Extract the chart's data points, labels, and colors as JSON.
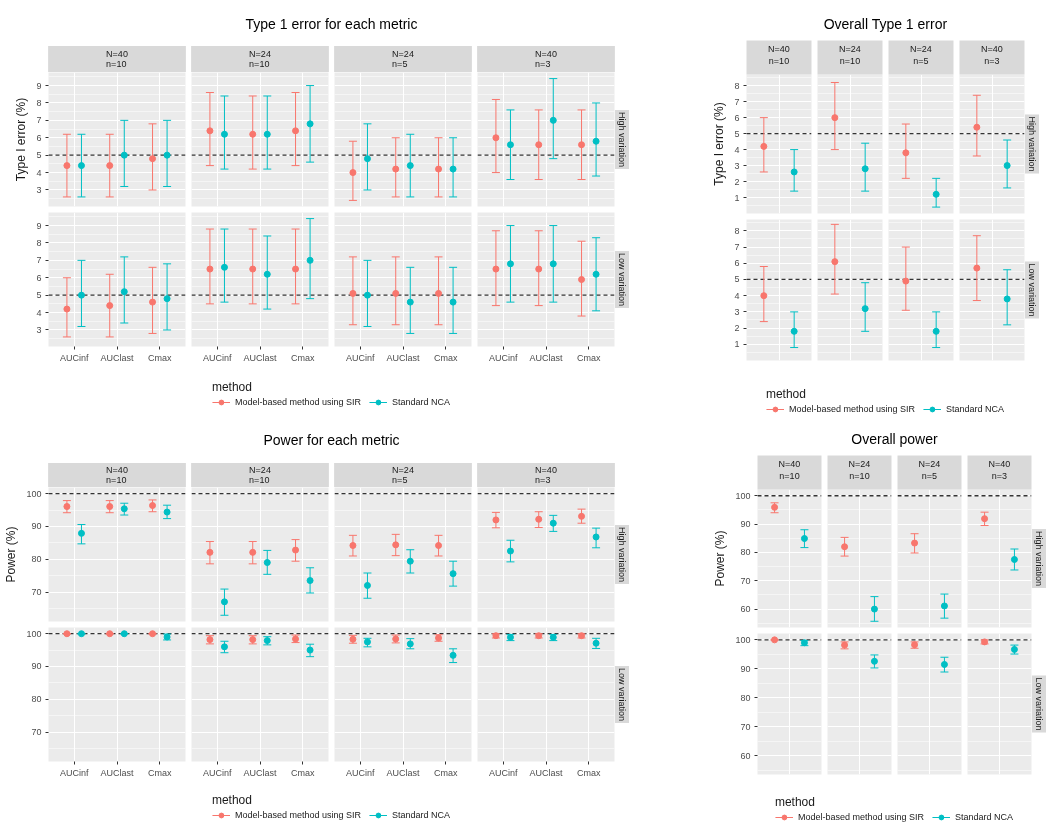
{
  "chart_data": [
    {
      "type": "other",
      "title": "Type 1 error for each metric"
    },
    {
      "type": "scatter",
      "title": "N=40\nn=10",
      "ylabel": "Type I error (%)",
      "tick_labels": "y",
      "categories": [
        "AUCinf",
        "AUClast",
        "Cmax"
      ],
      "ylim": [
        2.05,
        9.75
      ],
      "yticks": [
        3,
        4,
        5,
        6,
        7,
        8,
        9
      ],
      "grid": true,
      "marker": "circle",
      "ref_lines": [
        {
          "axis": "y",
          "value": 5,
          "color": "#333333",
          "line_style": "dashed"
        }
      ],
      "series": [
        {
          "color": "#f8766d",
          "values": [
            4.4,
            4.4,
            4.8
          ],
          "errors": [
            [
              2.6,
              6.2
            ],
            [
              2.6,
              6.2
            ],
            [
              3.0,
              6.8
            ]
          ]
        },
        {
          "color": "#00bfc4",
          "values": [
            4.4,
            5.0,
            5.0
          ],
          "errors": [
            [
              2.6,
              6.2
            ],
            [
              3.2,
              7.0
            ],
            [
              3.2,
              7.0
            ]
          ]
        }
      ]
    },
    {
      "type": "scatter",
      "title": "N=24\nn=10",
      "tick_labels": false,
      "categories": [
        "AUCinf",
        "AUClast",
        "Cmax"
      ],
      "ylim": [
        2.05,
        9.75
      ],
      "yticks": [
        3,
        4,
        5,
        6,
        7,
        8,
        9
      ],
      "grid": true,
      "marker": "circle",
      "ref_lines": [
        {
          "axis": "y",
          "value": 5,
          "color": "#333333",
          "line_style": "dashed"
        }
      ],
      "series": [
        {
          "color": "#f8766d",
          "values": [
            6.4,
            6.2,
            6.4
          ],
          "errors": [
            [
              4.4,
              8.6
            ],
            [
              4.2,
              8.4
            ],
            [
              4.4,
              8.6
            ]
          ]
        },
        {
          "color": "#00bfc4",
          "values": [
            6.2,
            6.2,
            6.8
          ],
          "errors": [
            [
              4.2,
              8.4
            ],
            [
              4.2,
              8.4
            ],
            [
              4.6,
              9.0
            ]
          ]
        }
      ]
    },
    {
      "type": "scatter",
      "title": "N=24\nn=5",
      "tick_labels": false,
      "categories": [
        "AUCinf",
        "AUClast",
        "Cmax"
      ],
      "ylim": [
        2.05,
        9.75
      ],
      "yticks": [
        3,
        4,
        5,
        6,
        7,
        8,
        9
      ],
      "grid": true,
      "marker": "circle",
      "ref_lines": [
        {
          "axis": "y",
          "value": 5,
          "color": "#333333",
          "line_style": "dashed"
        }
      ],
      "series": [
        {
          "color": "#f8766d",
          "values": [
            4.0,
            4.2,
            4.2
          ],
          "errors": [
            [
              2.4,
              5.8
            ],
            [
              2.6,
              6.0
            ],
            [
              2.6,
              6.0
            ]
          ]
        },
        {
          "color": "#00bfc4",
          "values": [
            4.8,
            4.4,
            4.2
          ],
          "errors": [
            [
              3.0,
              6.8
            ],
            [
              2.6,
              6.2
            ],
            [
              2.6,
              6.0
            ]
          ]
        }
      ]
    },
    {
      "type": "scatter",
      "title": "N=40\nn=3",
      "y2label": "High variation",
      "tick_labels": false,
      "categories": [
        "AUCinf",
        "AUClast",
        "Cmax"
      ],
      "ylim": [
        2.05,
        9.75
      ],
      "yticks": [
        3,
        4,
        5,
        6,
        7,
        8,
        9
      ],
      "grid": true,
      "marker": "circle",
      "ref_lines": [
        {
          "axis": "y",
          "value": 5,
          "color": "#333333",
          "line_style": "dashed"
        }
      ],
      "series": [
        {
          "color": "#f8766d",
          "values": [
            6.0,
            5.6,
            5.6
          ],
          "errors": [
            [
              4.0,
              8.2
            ],
            [
              3.6,
              7.6
            ],
            [
              3.6,
              7.6
            ]
          ]
        },
        {
          "color": "#00bfc4",
          "values": [
            5.6,
            7.0,
            5.8
          ],
          "errors": [
            [
              3.6,
              7.6
            ],
            [
              4.8,
              9.4
            ],
            [
              3.8,
              8.0
            ]
          ]
        }
      ]
    },
    {
      "type": "scatter",
      "categories": [
        "AUCinf",
        "AUClast",
        "Cmax"
      ],
      "ylim": [
        2.05,
        9.75
      ],
      "yticks": [
        3,
        4,
        5,
        6,
        7,
        8,
        9
      ],
      "grid": true,
      "marker": "circle",
      "ref_lines": [
        {
          "axis": "y",
          "value": 5,
          "color": "#333333",
          "line_style": "dashed"
        }
      ],
      "series": [
        {
          "color": "#f8766d",
          "values": [
            4.2,
            4.4,
            4.6
          ],
          "errors": [
            [
              2.6,
              6.0
            ],
            [
              2.6,
              6.2
            ],
            [
              2.8,
              6.6
            ]
          ]
        },
        {
          "color": "#00bfc4",
          "values": [
            5.0,
            5.2,
            4.8
          ],
          "errors": [
            [
              3.2,
              7.0
            ],
            [
              3.4,
              7.2
            ],
            [
              3.0,
              6.8
            ]
          ]
        }
      ]
    },
    {
      "type": "scatter",
      "tick_labels": "x",
      "categories": [
        "AUCinf",
        "AUClast",
        "Cmax"
      ],
      "ylim": [
        2.05,
        9.75
      ],
      "yticks": [
        3,
        4,
        5,
        6,
        7,
        8,
        9
      ],
      "grid": true,
      "marker": "circle",
      "ref_lines": [
        {
          "axis": "y",
          "value": 5,
          "color": "#333333",
          "line_style": "dashed"
        }
      ],
      "series": [
        {
          "color": "#f8766d",
          "values": [
            6.5,
            6.5,
            6.5
          ],
          "errors": [
            [
              4.5,
              8.8
            ],
            [
              4.5,
              8.8
            ],
            [
              4.5,
              8.8
            ]
          ]
        },
        {
          "color": "#00bfc4",
          "values": [
            6.6,
            6.2,
            7.0
          ],
          "errors": [
            [
              4.6,
              8.8
            ],
            [
              4.2,
              8.4
            ],
            [
              4.8,
              9.4
            ]
          ]
        }
      ]
    },
    {
      "type": "scatter",
      "tick_labels": "x",
      "categories": [
        "AUCinf",
        "AUClast",
        "Cmax"
      ],
      "ylim": [
        2.05,
        9.75
      ],
      "yticks": [
        3,
        4,
        5,
        6,
        7,
        8,
        9
      ],
      "grid": true,
      "marker": "circle",
      "ref_lines": [
        {
          "axis": "y",
          "value": 5,
          "color": "#333333",
          "line_style": "dashed"
        }
      ],
      "series": [
        {
          "color": "#f8766d",
          "values": [
            5.1,
            5.1,
            5.1
          ],
          "errors": [
            [
              3.3,
              7.2
            ],
            [
              3.3,
              7.2
            ],
            [
              3.3,
              7.2
            ]
          ]
        },
        {
          "color": "#00bfc4",
          "values": [
            5.0,
            4.6,
            4.6
          ],
          "errors": [
            [
              3.2,
              7.0
            ],
            [
              2.8,
              6.6
            ],
            [
              2.8,
              6.6
            ]
          ]
        }
      ]
    },
    {
      "type": "scatter",
      "y2label": "Low variation",
      "tick_labels": "x",
      "categories": [
        "AUCinf",
        "AUClast",
        "Cmax"
      ],
      "ylim": [
        2.05,
        9.75
      ],
      "yticks": [
        3,
        4,
        5,
        6,
        7,
        8,
        9
      ],
      "grid": true,
      "marker": "circle",
      "ref_lines": [
        {
          "axis": "y",
          "value": 5,
          "color": "#333333",
          "line_style": "dashed"
        }
      ],
      "series": [
        {
          "color": "#f8766d",
          "values": [
            6.5,
            6.5,
            5.9
          ],
          "errors": [
            [
              4.4,
              8.7
            ],
            [
              4.4,
              8.7
            ],
            [
              3.8,
              8.1
            ]
          ]
        },
        {
          "color": "#00bfc4",
          "values": [
            6.8,
            6.8,
            6.2
          ],
          "errors": [
            [
              4.6,
              9.0
            ],
            [
              4.6,
              9.0
            ],
            [
              4.1,
              8.3
            ]
          ]
        }
      ]
    },
    {
      "type": "other",
      "legend": "bottom",
      "legend_title": "method",
      "series": [
        {
          "name": "Model-based method using SIR",
          "color": "#f8766d"
        },
        {
          "name": "Standard NCA",
          "color": "#00bfc4"
        }
      ]
    },
    {
      "type": "other",
      "title": "Overall Type 1 error"
    },
    {
      "type": "scatter",
      "ylabel": "Type I error (%)",
      "categories": [
        "N=40\nn=10"
      ],
      "ylim": [
        0,
        8.7
      ],
      "yticks": [
        1,
        2,
        3,
        4,
        5,
        6,
        7,
        8
      ],
      "grid": true,
      "marker": "circle",
      "ref_lines": [
        {
          "axis": "y",
          "value": 5,
          "color": "#333333",
          "line_style": "dashed"
        }
      ],
      "series": [
        {
          "color": "#f8766d",
          "values": [
            4.2
          ],
          "errors": [
            [
              2.6,
              6.0
            ]
          ]
        },
        {
          "color": "#00bfc4",
          "values": [
            2.6
          ],
          "errors": [
            [
              1.4,
              4.0
            ]
          ]
        }
      ]
    },
    {
      "type": "scatter",
      "tick_labels": "x",
      "categories": [
        "N=24\nn=10"
      ],
      "ylim": [
        0,
        8.7
      ],
      "yticks": [
        1,
        2,
        3,
        4,
        5,
        6,
        7,
        8
      ],
      "grid": true,
      "marker": "circle",
      "ref_lines": [
        {
          "axis": "y",
          "value": 5,
          "color": "#333333",
          "line_style": "dashed"
        }
      ],
      "series": [
        {
          "color": "#f8766d",
          "values": [
            6.0
          ],
          "errors": [
            [
              4.0,
              8.2
            ]
          ]
        },
        {
          "color": "#00bfc4",
          "values": [
            2.8
          ],
          "errors": [
            [
              1.4,
              4.4
            ]
          ]
        }
      ]
    },
    {
      "type": "scatter",
      "tick_labels": "x",
      "categories": [
        "N=24\nn=5"
      ],
      "ylim": [
        0,
        8.7
      ],
      "yticks": [
        1,
        2,
        3,
        4,
        5,
        6,
        7,
        8
      ],
      "grid": true,
      "marker": "circle",
      "ref_lines": [
        {
          "axis": "y",
          "value": 5,
          "color": "#333333",
          "line_style": "dashed"
        }
      ],
      "series": [
        {
          "color": "#f8766d",
          "values": [
            3.8
          ],
          "errors": [
            [
              2.2,
              5.6
            ]
          ]
        },
        {
          "color": "#00bfc4",
          "values": [
            1.2
          ],
          "errors": [
            [
              0.4,
              2.2
            ]
          ]
        }
      ]
    },
    {
      "type": "scatter",
      "y2label": "High variation",
      "tick_labels": "x",
      "categories": [
        "N=40\nn=3"
      ],
      "ylim": [
        0,
        8.7
      ],
      "yticks": [
        1,
        2,
        3,
        4,
        5,
        6,
        7,
        8
      ],
      "grid": true,
      "marker": "circle",
      "ref_lines": [
        {
          "axis": "y",
          "value": 5,
          "color": "#333333",
          "line_style": "dashed"
        }
      ],
      "series": [
        {
          "color": "#f8766d",
          "values": [
            5.4
          ],
          "errors": [
            [
              3.6,
              7.4
            ]
          ]
        },
        {
          "color": "#00bfc4",
          "values": [
            3.0
          ],
          "errors": [
            [
              1.6,
              4.6
            ]
          ]
        }
      ]
    },
    {
      "type": "scatter",
      "tick_labels": "y",
      "categories": [
        "N=40\nn=10"
      ],
      "ylim": [
        0,
        8.7
      ],
      "yticks": [
        1,
        2,
        3,
        4,
        5,
        6,
        7,
        8
      ],
      "grid": true,
      "marker": "circle",
      "ref_lines": [
        {
          "axis": "y",
          "value": 5,
          "color": "#333333",
          "line_style": "dashed"
        }
      ],
      "series": [
        {
          "color": "#f8766d",
          "values": [
            4.0
          ],
          "errors": [
            [
              2.4,
              5.8
            ]
          ]
        },
        {
          "color": "#00bfc4",
          "values": [
            1.8
          ],
          "errors": [
            [
              0.8,
              3.0
            ]
          ]
        }
      ]
    },
    {
      "type": "scatter",
      "tick_labels": false,
      "categories": [
        "N=24\nn=10"
      ],
      "ylim": [
        0,
        8.7
      ],
      "yticks": [
        1,
        2,
        3,
        4,
        5,
        6,
        7,
        8
      ],
      "grid": true,
      "marker": "circle",
      "ref_lines": [
        {
          "axis": "y",
          "value": 5,
          "color": "#333333",
          "line_style": "dashed"
        }
      ],
      "series": [
        {
          "color": "#f8766d",
          "values": [
            6.1
          ],
          "errors": [
            [
              4.1,
              8.4
            ]
          ]
        },
        {
          "color": "#00bfc4",
          "values": [
            3.2
          ],
          "errors": [
            [
              1.8,
              4.8
            ]
          ]
        }
      ]
    },
    {
      "type": "scatter",
      "tick_labels": false,
      "categories": [
        "N=24\nn=5"
      ],
      "ylim": [
        0,
        8.7
      ],
      "yticks": [
        1,
        2,
        3,
        4,
        5,
        6,
        7,
        8
      ],
      "grid": true,
      "marker": "circle",
      "ref_lines": [
        {
          "axis": "y",
          "value": 5,
          "color": "#333333",
          "line_style": "dashed"
        }
      ],
      "series": [
        {
          "color": "#f8766d",
          "values": [
            4.9
          ],
          "errors": [
            [
              3.1,
              7.0
            ]
          ]
        },
        {
          "color": "#00bfc4",
          "values": [
            1.8
          ],
          "errors": [
            [
              0.8,
              3.0
            ]
          ]
        }
      ]
    },
    {
      "type": "scatter",
      "y2label": "Low variation",
      "tick_labels": false,
      "categories": [
        "N=40\nn=3"
      ],
      "ylim": [
        0,
        8.7
      ],
      "yticks": [
        1,
        2,
        3,
        4,
        5,
        6,
        7,
        8
      ],
      "grid": true,
      "marker": "circle",
      "ref_lines": [
        {
          "axis": "y",
          "value": 5,
          "color": "#333333",
          "line_style": "dashed"
        }
      ],
      "series": [
        {
          "color": "#f8766d",
          "values": [
            5.7
          ],
          "errors": [
            [
              3.7,
              7.7
            ]
          ]
        },
        {
          "color": "#00bfc4",
          "values": [
            3.8
          ],
          "errors": [
            [
              2.2,
              5.6
            ]
          ]
        }
      ]
    },
    {
      "type": "other",
      "legend": "bottom",
      "legend_title": "method",
      "series": [
        {
          "name": "Model-based method using SIR",
          "color": "#f8766d"
        },
        {
          "name": "Standard NCA",
          "color": "#00bfc4"
        }
      ]
    },
    {
      "type": "other",
      "title": "Power for each metric"
    },
    {
      "type": "scatter",
      "title": "N=40\nn=10",
      "ylabel": "Power (%)",
      "tick_labels": "y",
      "categories": [
        "AUCinf",
        "AUClast",
        "Cmax"
      ],
      "ylim": [
        61,
        101.9
      ],
      "yticks": [
        70,
        80,
        90,
        100
      ],
      "grid": true,
      "marker": "circle",
      "ref_lines": [
        {
          "axis": "y",
          "value": 100,
          "color": "#333333",
          "line_style": "dashed"
        }
      ],
      "series": [
        {
          "color": "#f8766d",
          "values": [
            96.1,
            96.1,
            96.4
          ],
          "errors": [
            [
              94.2,
              97.9
            ],
            [
              94.2,
              97.9
            ],
            [
              94.5,
              98.1
            ]
          ]
        },
        {
          "color": "#00bfc4",
          "values": [
            87.9,
            95.4,
            94.4
          ],
          "errors": [
            [
              84.7,
              90.6
            ],
            [
              93.5,
              97.1
            ],
            [
              92.4,
              96.5
            ]
          ]
        }
      ]
    },
    {
      "type": "scatter",
      "title": "N=24\nn=10",
      "tick_labels": false,
      "categories": [
        "AUCinf",
        "AUClast",
        "Cmax"
      ],
      "ylim": [
        61,
        101.9
      ],
      "yticks": [
        70,
        80,
        90,
        100
      ],
      "grid": true,
      "marker": "circle",
      "ref_lines": [
        {
          "axis": "y",
          "value": 100,
          "color": "#333333",
          "line_style": "dashed"
        }
      ],
      "series": [
        {
          "color": "#f8766d",
          "values": [
            82.1,
            82.1,
            82.8
          ],
          "errors": [
            [
              78.6,
              85.4
            ],
            [
              78.6,
              85.4
            ],
            [
              79.4,
              86.0
            ]
          ]
        },
        {
          "color": "#00bfc4",
          "values": [
            67.0,
            79.0,
            73.5
          ],
          "errors": [
            [
              62.9,
              70.9
            ],
            [
              75.4,
              82.7
            ],
            [
              69.7,
              77.4
            ]
          ]
        }
      ]
    },
    {
      "type": "scatter",
      "title": "N=24\nn=5",
      "tick_labels": false,
      "categories": [
        "AUCinf",
        "AUClast",
        "Cmax"
      ],
      "ylim": [
        61,
        101.9
      ],
      "yticks": [
        70,
        80,
        90,
        100
      ],
      "grid": true,
      "marker": "circle",
      "ref_lines": [
        {
          "axis": "y",
          "value": 100,
          "color": "#333333",
          "line_style": "dashed"
        }
      ],
      "series": [
        {
          "color": "#f8766d",
          "values": [
            84.2,
            84.4,
            84.2
          ],
          "errors": [
            [
              81.0,
              87.3
            ],
            [
              81.1,
              87.6
            ],
            [
              81.0,
              87.3
            ]
          ]
        },
        {
          "color": "#00bfc4",
          "values": [
            72.0,
            79.4,
            75.6
          ],
          "errors": [
            [
              68.1,
              75.8
            ],
            [
              75.8,
              82.9
            ],
            [
              71.8,
              79.4
            ]
          ]
        }
      ]
    },
    {
      "type": "scatter",
      "title": "N=40\nn=3",
      "y2label": "High variation",
      "tick_labels": false,
      "categories": [
        "AUCinf",
        "AUClast",
        "Cmax"
      ],
      "ylim": [
        61,
        101.9
      ],
      "yticks": [
        70,
        80,
        90,
        100
      ],
      "grid": true,
      "marker": "circle",
      "ref_lines": [
        {
          "axis": "y",
          "value": 100,
          "color": "#333333",
          "line_style": "dashed"
        }
      ],
      "series": [
        {
          "color": "#f8766d",
          "values": [
            92.0,
            92.2,
            93.1
          ],
          "errors": [
            [
              89.6,
              94.3
            ],
            [
              89.7,
              94.5
            ],
            [
              91.0,
              95.3
            ]
          ]
        },
        {
          "color": "#00bfc4",
          "values": [
            82.5,
            91.0,
            86.8
          ],
          "errors": [
            [
              79.2,
              85.8
            ],
            [
              88.5,
              93.4
            ],
            [
              83.5,
              89.5
            ]
          ]
        }
      ]
    },
    {
      "type": "scatter",
      "categories": [
        "AUCinf",
        "AUClast",
        "Cmax"
      ],
      "ylim": [
        61,
        101.9
      ],
      "yticks": [
        70,
        80,
        90,
        100
      ],
      "grid": true,
      "marker": "circle",
      "ref_lines": [
        {
          "axis": "y",
          "value": 100,
          "color": "#333333",
          "line_style": "dashed"
        }
      ],
      "series": [
        {
          "color": "#f8766d",
          "values": [
            100,
            100,
            100
          ],
          "errors": [
            [
              100,
              100
            ],
            [
              100,
              100
            ],
            [
              100,
              100
            ]
          ]
        },
        {
          "color": "#00bfc4",
          "values": [
            100,
            100,
            99.0
          ],
          "errors": [
            [
              100,
              100
            ],
            [
              100,
              100
            ],
            [
              98.1,
              99.9
            ]
          ]
        }
      ]
    },
    {
      "type": "scatter",
      "tick_labels": "x",
      "categories": [
        "AUCinf",
        "AUClast",
        "Cmax"
      ],
      "ylim": [
        61,
        101.9
      ],
      "yticks": [
        70,
        80,
        90,
        100
      ],
      "grid": true,
      "marker": "circle",
      "ref_lines": [
        {
          "axis": "y",
          "value": 100,
          "color": "#333333",
          "line_style": "dashed"
        }
      ],
      "series": [
        {
          "color": "#f8766d",
          "values": [
            98.2,
            98.2,
            98.4
          ],
          "errors": [
            [
              96.9,
              99.4
            ],
            [
              96.9,
              99.4
            ],
            [
              97.3,
              99.6
            ]
          ]
        },
        {
          "color": "#00bfc4",
          "values": [
            96.0,
            97.9,
            95.0
          ],
          "errors": [
            [
              94.2,
              97.7
            ],
            [
              96.6,
              99.1
            ],
            [
              93.0,
              96.8
            ]
          ]
        }
      ]
    },
    {
      "type": "scatter",
      "tick_labels": "x",
      "categories": [
        "AUCinf",
        "AUClast",
        "Cmax"
      ],
      "ylim": [
        61,
        101.9
      ],
      "yticks": [
        70,
        80,
        90,
        100
      ],
      "grid": true,
      "marker": "circle",
      "ref_lines": [
        {
          "axis": "y",
          "value": 100,
          "color": "#333333",
          "line_style": "dashed"
        }
      ],
      "series": [
        {
          "color": "#f8766d",
          "values": [
            98.3,
            98.4,
            98.7
          ],
          "errors": [
            [
              97.1,
              99.5
            ],
            [
              97.2,
              99.6
            ],
            [
              97.7,
              99.7
            ]
          ]
        },
        {
          "color": "#00bfc4",
          "values": [
            97.5,
            96.9,
            93.4
          ],
          "errors": [
            [
              96.0,
              98.6
            ],
            [
              95.4,
              98.5
            ],
            [
              91.2,
              95.4
            ]
          ]
        }
      ]
    },
    {
      "type": "scatter",
      "y2label": "Low variation",
      "tick_labels": "x",
      "categories": [
        "AUCinf",
        "AUClast",
        "Cmax"
      ],
      "ylim": [
        61,
        101.9
      ],
      "yticks": [
        70,
        80,
        90,
        100
      ],
      "grid": true,
      "marker": "circle",
      "ref_lines": [
        {
          "axis": "y",
          "value": 100,
          "color": "#333333",
          "line_style": "dashed"
        }
      ],
      "series": [
        {
          "color": "#f8766d",
          "values": [
            99.4,
            99.4,
            99.4
          ],
          "errors": [
            [
              98.7,
              100
            ],
            [
              98.7,
              100
            ],
            [
              98.7,
              100
            ]
          ]
        },
        {
          "color": "#00bfc4",
          "values": [
            98.9,
            98.9,
            97.1
          ],
          "errors": [
            [
              97.9,
              99.8
            ],
            [
              97.9,
              99.8
            ],
            [
              95.5,
              98.6
            ]
          ]
        }
      ]
    },
    {
      "type": "other",
      "legend": "bottom",
      "legend_title": "method",
      "series": [
        {
          "name": "Model-based method using SIR",
          "color": "#f8766d"
        },
        {
          "name": "Standard NCA",
          "color": "#00bfc4"
        }
      ]
    },
    {
      "type": "other",
      "title": "Overall power"
    },
    {
      "type": "scatter",
      "ylabel": "Power (%)",
      "categories": [
        "N=40\nn=10"
      ],
      "ylim": [
        53.5,
        102.2
      ],
      "yticks": [
        60,
        70,
        80,
        90,
        100
      ],
      "grid": true,
      "marker": "circle",
      "ref_lines": [
        {
          "axis": "y",
          "value": 100,
          "color": "#333333",
          "line_style": "dashed"
        }
      ],
      "series": [
        {
          "color": "#f8766d",
          "values": [
            95.9
          ],
          "errors": [
            [
              94.0,
              97.5
            ]
          ]
        },
        {
          "color": "#00bfc4",
          "values": [
            84.9
          ],
          "errors": [
            [
              81.7,
              88.0
            ]
          ]
        }
      ]
    },
    {
      "type": "scatter",
      "tick_labels": "x",
      "categories": [
        "N=24\nn=10"
      ],
      "ylim": [
        53.5,
        102.2
      ],
      "yticks": [
        60,
        70,
        80,
        90,
        100
      ],
      "grid": true,
      "marker": "circle",
      "ref_lines": [
        {
          "axis": "y",
          "value": 100,
          "color": "#333333",
          "line_style": "dashed"
        }
      ],
      "series": [
        {
          "color": "#f8766d",
          "values": [
            82.0
          ],
          "errors": [
            [
              78.7,
              85.3
            ]
          ]
        },
        {
          "color": "#00bfc4",
          "values": [
            60.0
          ],
          "errors": [
            [
              55.7,
              64.4
            ]
          ]
        }
      ]
    },
    {
      "type": "scatter",
      "tick_labels": "x",
      "categories": [
        "N=24\nn=5"
      ],
      "ylim": [
        53.5,
        102.2
      ],
      "yticks": [
        60,
        70,
        80,
        90,
        100
      ],
      "grid": true,
      "marker": "circle",
      "ref_lines": [
        {
          "axis": "y",
          "value": 100,
          "color": "#333333",
          "line_style": "dashed"
        }
      ],
      "series": [
        {
          "color": "#f8766d",
          "values": [
            83.3
          ],
          "errors": [
            [
              79.8,
              86.6
            ]
          ]
        },
        {
          "color": "#00bfc4",
          "values": [
            61.1
          ],
          "errors": [
            [
              56.8,
              65.3
            ]
          ]
        }
      ]
    },
    {
      "type": "scatter",
      "y2label": "High variation",
      "tick_labels": "x",
      "categories": [
        "N=40\nn=3"
      ],
      "ylim": [
        53.5,
        102.2
      ],
      "yticks": [
        60,
        70,
        80,
        90,
        100
      ],
      "grid": true,
      "marker": "circle",
      "ref_lines": [
        {
          "axis": "y",
          "value": 100,
          "color": "#333333",
          "line_style": "dashed"
        }
      ],
      "series": [
        {
          "color": "#f8766d",
          "values": [
            91.9
          ],
          "errors": [
            [
              89.5,
              94.2
            ]
          ]
        },
        {
          "color": "#00bfc4",
          "values": [
            77.5
          ],
          "errors": [
            [
              73.8,
              81.2
            ]
          ]
        }
      ]
    },
    {
      "type": "scatter",
      "tick_labels": "y",
      "categories": [
        "N=40\nn=10"
      ],
      "ylim": [
        53.5,
        102.2
      ],
      "yticks": [
        60,
        70,
        80,
        90,
        100
      ],
      "grid": true,
      "marker": "circle",
      "ref_lines": [
        {
          "axis": "y",
          "value": 100,
          "color": "#333333",
          "line_style": "dashed"
        }
      ],
      "series": [
        {
          "color": "#f8766d",
          "values": [
            100
          ],
          "errors": [
            [
              100,
              100
            ]
          ]
        },
        {
          "color": "#00bfc4",
          "values": [
            99.0
          ],
          "errors": [
            [
              98.0,
              99.8
            ]
          ]
        }
      ]
    },
    {
      "type": "scatter",
      "tick_labels": false,
      "categories": [
        "N=24\nn=10"
      ],
      "ylim": [
        53.5,
        102.2
      ],
      "yticks": [
        60,
        70,
        80,
        90,
        100
      ],
      "grid": true,
      "marker": "circle",
      "ref_lines": [
        {
          "axis": "y",
          "value": 100,
          "color": "#333333",
          "line_style": "dashed"
        }
      ],
      "series": [
        {
          "color": "#f8766d",
          "values": [
            98.2
          ],
          "errors": [
            [
              96.9,
              99.3
            ]
          ]
        },
        {
          "color": "#00bfc4",
          "values": [
            92.6
          ],
          "errors": [
            [
              90.3,
              94.8
            ]
          ]
        }
      ]
    },
    {
      "type": "scatter",
      "tick_labels": false,
      "categories": [
        "N=24\nn=5"
      ],
      "ylim": [
        53.5,
        102.2
      ],
      "yticks": [
        60,
        70,
        80,
        90,
        100
      ],
      "grid": true,
      "marker": "circle",
      "ref_lines": [
        {
          "axis": "y",
          "value": 100,
          "color": "#333333",
          "line_style": "dashed"
        }
      ],
      "series": [
        {
          "color": "#f8766d",
          "values": [
            98.3
          ],
          "errors": [
            [
              97.1,
              99.3
            ]
          ]
        },
        {
          "color": "#00bfc4",
          "values": [
            91.5
          ],
          "errors": [
            [
              88.9,
              94.0
            ]
          ]
        }
      ]
    },
    {
      "type": "scatter",
      "y2label": "Low variation",
      "tick_labels": false,
      "categories": [
        "N=40\nn=3"
      ],
      "ylim": [
        53.5,
        102.2
      ],
      "yticks": [
        60,
        70,
        80,
        90,
        100
      ],
      "grid": true,
      "marker": "circle",
      "ref_lines": [
        {
          "axis": "y",
          "value": 100,
          "color": "#333333",
          "line_style": "dashed"
        }
      ],
      "series": [
        {
          "color": "#f8766d",
          "values": [
            99.3
          ],
          "errors": [
            [
              98.6,
              100
            ]
          ]
        },
        {
          "color": "#00bfc4",
          "values": [
            96.7
          ],
          "errors": [
            [
              95.1,
              98.2
            ]
          ]
        }
      ]
    },
    {
      "type": "other",
      "legend": "bottom",
      "legend_title": "method",
      "series": [
        {
          "name": "Model-based method using SIR",
          "color": "#f8766d"
        },
        {
          "name": "Standard NCA",
          "color": "#00bfc4"
        }
      ]
    }
  ]
}
